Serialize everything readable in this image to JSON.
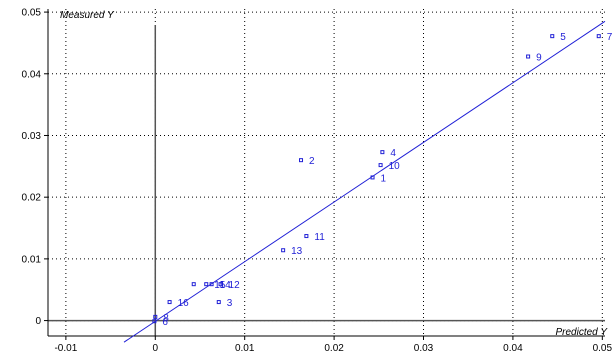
{
  "chart_data": {
    "type": "scatter",
    "title": "",
    "xlabel": "Predicted Y",
    "ylabel": "Measured Y",
    "xlim": [
      -0.012,
      0.0503
    ],
    "ylim": [
      -0.0025,
      0.0505
    ],
    "x_ticks": [
      {
        "value": -0.01,
        "label": "-0.01"
      },
      {
        "value": 0,
        "label": "0"
      },
      {
        "value": 0.01,
        "label": "0.01"
      },
      {
        "value": 0.02,
        "label": "0.02"
      },
      {
        "value": 0.03,
        "label": "0.03"
      },
      {
        "value": 0.04,
        "label": "0.04"
      },
      {
        "value": 0.05,
        "label": "0.05"
      }
    ],
    "y_ticks": [
      {
        "value": 0,
        "label": "0"
      },
      {
        "value": 0.01,
        "label": "0.01"
      },
      {
        "value": 0.02,
        "label": "0.02"
      },
      {
        "value": 0.03,
        "label": "0.03"
      },
      {
        "value": 0.04,
        "label": "0.04"
      },
      {
        "value": 0.05,
        "label": "0.05"
      }
    ],
    "grid": true,
    "colors": {
      "points": "#1f1fd6",
      "fit_line": "#1f1fd6",
      "grid": "#000000",
      "axes": "#000000",
      "zero_lines": "#555555"
    },
    "points": [
      {
        "label": "1",
        "x": 0.0243,
        "y": 0.0232
      },
      {
        "label": "2",
        "x": 0.0163,
        "y": 0.026
      },
      {
        "label": "3",
        "x": 0.0071,
        "y": 0.003
      },
      {
        "label": "4",
        "x": 0.0254,
        "y": 0.0273
      },
      {
        "label": "5",
        "x": 0.0444,
        "y": 0.0461
      },
      {
        "label": "7",
        "x": 0.0496,
        "y": 0.0461
      },
      {
        "label": "8",
        "x": 0.0,
        "y": 0.0006
      },
      {
        "label": "6",
        "x": -0.0001,
        "y": -0.0001
      },
      {
        "label": "9",
        "x": 0.0417,
        "y": 0.0428
      },
      {
        "label": "10",
        "x": 0.0252,
        "y": 0.0252
      },
      {
        "label": "11",
        "x": 0.0169,
        "y": 0.0137
      },
      {
        "label": "13",
        "x": 0.0143,
        "y": 0.0114
      },
      {
        "label": "12",
        "x": 0.0073,
        "y": 0.0059
      },
      {
        "label": "14",
        "x": 0.0063,
        "y": 0.0059
      },
      {
        "label": "15",
        "x": 0.0057,
        "y": 0.0059
      },
      {
        "label": "16",
        "x": 0.0016,
        "y": 0.003
      },
      {
        "label": "",
        "x": 0.0043,
        "y": 0.0059
      }
    ],
    "fit_line": {
      "x": [
        -0.0035,
        0.0503
      ],
      "y": [
        -0.0035,
        0.0485
      ]
    }
  }
}
